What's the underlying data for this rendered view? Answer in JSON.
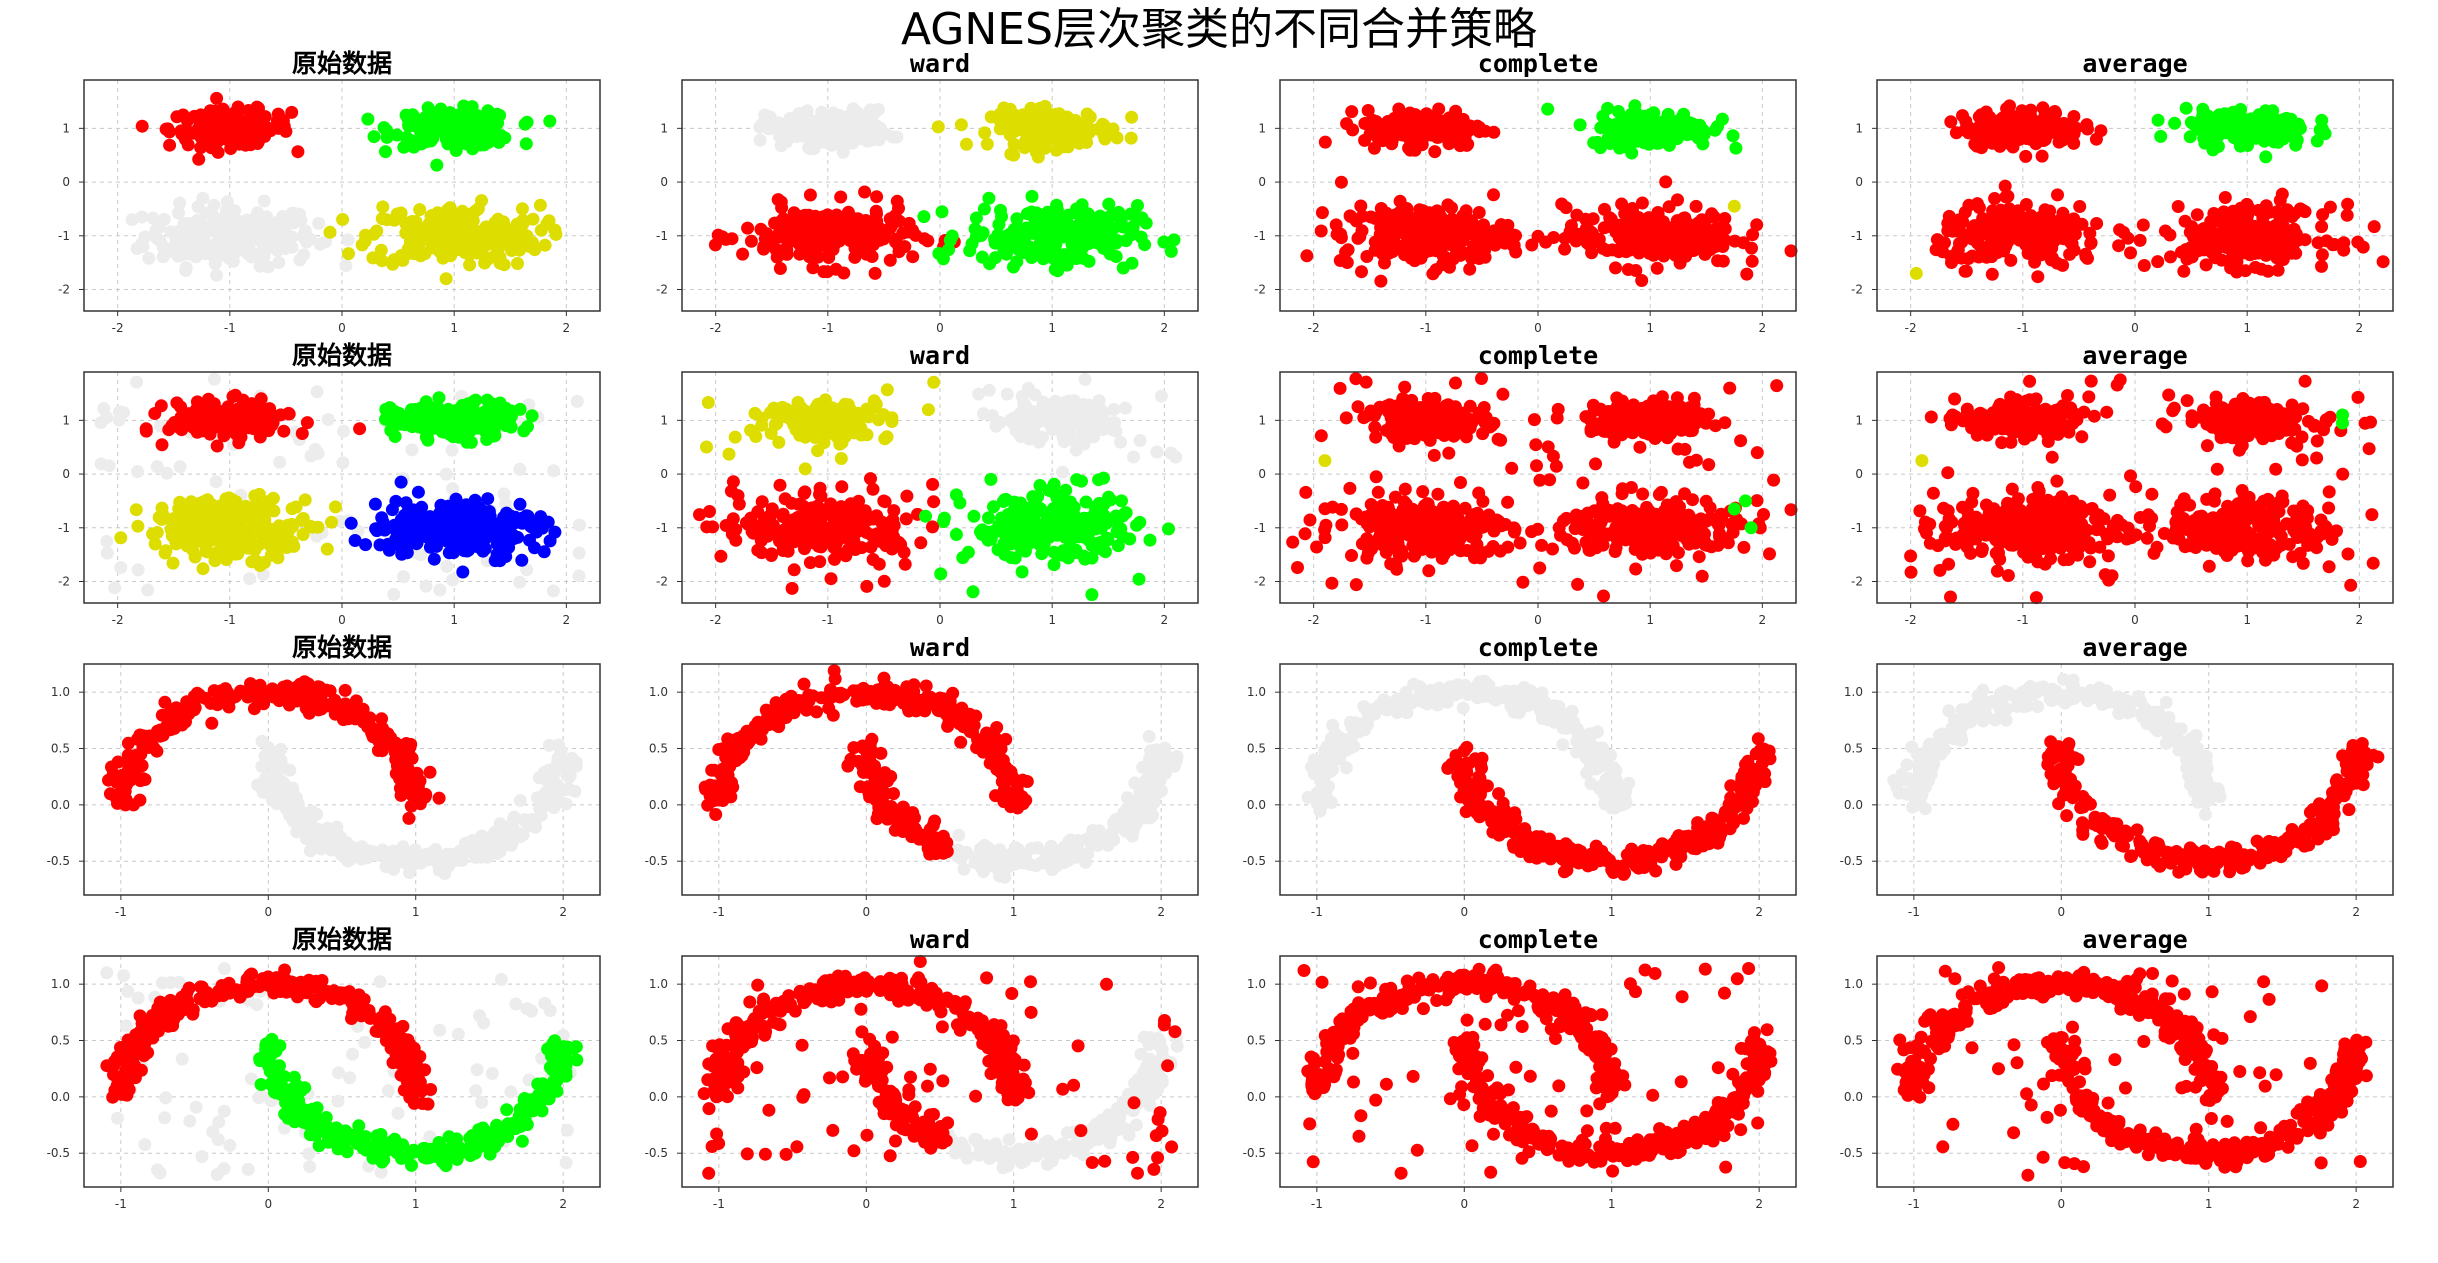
{
  "suptitle": "AGNES层次聚类的不同合并策略",
  "colors": {
    "unassigned": "#ececec",
    "cluster_red": "#ff0000",
    "cluster_green": "#00ff00",
    "cluster_yellow": "#dddd00",
    "cluster_blue": "#0000ff"
  },
  "chart_data": [
    {
      "type": "scatter",
      "title": "原始数据",
      "row": 0,
      "col": 0,
      "dataset": "blobs",
      "xlim": [
        -2.3,
        2.3
      ],
      "ylim": [
        -2.4,
        1.9
      ],
      "xticks": [
        "-2",
        "-1",
        "0",
        "1",
        "2"
      ],
      "yticks": [
        "-2",
        "-1",
        "0",
        "1"
      ],
      "grid": true,
      "noise": false,
      "groups": [
        {
          "region": "tl",
          "color": "cluster_red"
        },
        {
          "region": "tr",
          "color": "cluster_green"
        },
        {
          "region": "bl",
          "color": "unassigned"
        },
        {
          "region": "br",
          "color": "cluster_yellow"
        }
      ]
    },
    {
      "type": "scatter",
      "title": "ward",
      "row": 0,
      "col": 1,
      "dataset": "blobs",
      "xlim": [
        -2.3,
        2.3
      ],
      "ylim": [
        -2.4,
        1.9
      ],
      "xticks": [
        "-2",
        "-1",
        "0",
        "1",
        "2"
      ],
      "yticks": [
        "-2",
        "-1",
        "0",
        "1"
      ],
      "grid": true,
      "noise": false,
      "groups": [
        {
          "region": "tl",
          "color": "unassigned"
        },
        {
          "region": "tr",
          "color": "cluster_yellow"
        },
        {
          "region": "bl",
          "color": "cluster_red"
        },
        {
          "region": "br",
          "color": "cluster_green"
        }
      ]
    },
    {
      "type": "scatter",
      "title": "complete",
      "row": 0,
      "col": 2,
      "dataset": "blobs",
      "xlim": [
        -2.3,
        2.3
      ],
      "ylim": [
        -2.4,
        1.9
      ],
      "xticks": [
        "-2",
        "-1",
        "0",
        "1",
        "2"
      ],
      "yticks": [
        "-2",
        "-1",
        "0",
        "1"
      ],
      "grid": true,
      "noise": false,
      "groups": [
        {
          "region": "tl",
          "color": "cluster_red"
        },
        {
          "region": "tr",
          "color": "cluster_green"
        },
        {
          "region": "bl",
          "color": "cluster_red"
        },
        {
          "region": "br",
          "color": "cluster_red"
        }
      ],
      "extra_points": [
        {
          "x": 1.75,
          "y": -0.45,
          "color": "cluster_yellow"
        }
      ]
    },
    {
      "type": "scatter",
      "title": "average",
      "row": 0,
      "col": 3,
      "dataset": "blobs",
      "xlim": [
        -2.3,
        2.3
      ],
      "ylim": [
        -2.4,
        1.9
      ],
      "xticks": [
        "-2",
        "-1",
        "0",
        "1",
        "2"
      ],
      "yticks": [
        "-2",
        "-1",
        "0",
        "1"
      ],
      "grid": true,
      "noise": false,
      "groups": [
        {
          "region": "tl",
          "color": "cluster_red"
        },
        {
          "region": "tr",
          "color": "cluster_green"
        },
        {
          "region": "bl",
          "color": "cluster_red"
        },
        {
          "region": "br",
          "color": "cluster_red"
        }
      ],
      "extra_points": [
        {
          "x": -1.95,
          "y": -1.7,
          "color": "cluster_yellow"
        }
      ]
    },
    {
      "type": "scatter",
      "title": "原始数据",
      "row": 1,
      "col": 0,
      "dataset": "blobs",
      "xlim": [
        -2.3,
        2.3
      ],
      "ylim": [
        -2.4,
        1.9
      ],
      "xticks": [
        "-2",
        "-1",
        "0",
        "1",
        "2"
      ],
      "yticks": [
        "-2",
        "-1",
        "0",
        "1"
      ],
      "grid": true,
      "noise": true,
      "noise_color": "unassigned",
      "groups": [
        {
          "region": "tl",
          "color": "cluster_red"
        },
        {
          "region": "tr",
          "color": "cluster_green"
        },
        {
          "region": "bl",
          "color": "cluster_yellow"
        },
        {
          "region": "br",
          "color": "cluster_blue"
        }
      ]
    },
    {
      "type": "scatter",
      "title": "ward",
      "row": 1,
      "col": 1,
      "dataset": "blobs",
      "xlim": [
        -2.3,
        2.3
      ],
      "ylim": [
        -2.4,
        1.9
      ],
      "xticks": [
        "-2",
        "-1",
        "0",
        "1",
        "2"
      ],
      "yticks": [
        "-2",
        "-1",
        "0",
        "1"
      ],
      "grid": true,
      "noise": true,
      "noise_color": "mixed",
      "groups": [
        {
          "region": "tl",
          "color": "cluster_yellow"
        },
        {
          "region": "tr",
          "color": "unassigned"
        },
        {
          "region": "bl",
          "color": "cluster_red"
        },
        {
          "region": "br",
          "color": "cluster_green"
        }
      ]
    },
    {
      "type": "scatter",
      "title": "complete",
      "row": 1,
      "col": 2,
      "dataset": "blobs",
      "xlim": [
        -2.3,
        2.3
      ],
      "ylim": [
        -2.4,
        1.9
      ],
      "xticks": [
        "-2",
        "-1",
        "0",
        "1",
        "2"
      ],
      "yticks": [
        "-2",
        "-1",
        "0",
        "1"
      ],
      "grid": true,
      "noise": true,
      "noise_color": "cluster_red",
      "groups": [
        {
          "region": "tl",
          "color": "cluster_red"
        },
        {
          "region": "tr",
          "color": "cluster_red"
        },
        {
          "region": "bl",
          "color": "cluster_red"
        },
        {
          "region": "br",
          "color": "cluster_red"
        }
      ],
      "extra_points": [
        {
          "x": -1.9,
          "y": 0.25,
          "color": "cluster_yellow"
        },
        {
          "x": 1.85,
          "y": -0.5,
          "color": "cluster_green"
        },
        {
          "x": 1.75,
          "y": -0.65,
          "color": "cluster_green"
        },
        {
          "x": 1.9,
          "y": -1.0,
          "color": "cluster_green"
        }
      ]
    },
    {
      "type": "scatter",
      "title": "average",
      "row": 1,
      "col": 3,
      "dataset": "blobs",
      "xlim": [
        -2.3,
        2.3
      ],
      "ylim": [
        -2.4,
        1.9
      ],
      "xticks": [
        "-2",
        "-1",
        "0",
        "1",
        "2"
      ],
      "yticks": [
        "-2",
        "-1",
        "0",
        "1"
      ],
      "grid": true,
      "noise": true,
      "noise_color": "cluster_red",
      "groups": [
        {
          "region": "tl",
          "color": "cluster_red"
        },
        {
          "region": "tr",
          "color": "cluster_red"
        },
        {
          "region": "bl",
          "color": "cluster_red"
        },
        {
          "region": "br",
          "color": "cluster_red"
        }
      ],
      "extra_points": [
        {
          "x": -1.9,
          "y": 0.25,
          "color": "cluster_yellow"
        },
        {
          "x": 1.85,
          "y": 1.1,
          "color": "cluster_green"
        },
        {
          "x": 1.85,
          "y": 0.95,
          "color": "cluster_green"
        }
      ]
    },
    {
      "type": "scatter",
      "title": "原始数据",
      "row": 2,
      "col": 0,
      "dataset": "moons",
      "xlim": [
        -1.25,
        2.25
      ],
      "ylim": [
        -0.8,
        1.25
      ],
      "xticks": [
        "-1",
        "0",
        "1",
        "2"
      ],
      "yticks": [
        "-0.5",
        "0.0",
        "0.5",
        "1.0"
      ],
      "grid": true,
      "noise": false,
      "groups": [
        {
          "region": "upper",
          "color": "cluster_red"
        },
        {
          "region": "lower",
          "color": "unassigned"
        }
      ]
    },
    {
      "type": "scatter",
      "title": "ward",
      "row": 2,
      "col": 1,
      "dataset": "moons",
      "xlim": [
        -1.25,
        2.25
      ],
      "ylim": [
        -0.8,
        1.25
      ],
      "xticks": [
        "-1",
        "0",
        "1",
        "2"
      ],
      "yticks": [
        "-0.5",
        "0.0",
        "0.5",
        "1.0"
      ],
      "grid": true,
      "noise": false,
      "groups": [
        {
          "region": "upper",
          "color": "cluster_red"
        },
        {
          "region": "lower_left",
          "color": "cluster_red"
        },
        {
          "region": "lower_right",
          "color": "unassigned"
        }
      ]
    },
    {
      "type": "scatter",
      "title": "complete",
      "row": 2,
      "col": 2,
      "dataset": "moons",
      "xlim": [
        -1.25,
        2.25
      ],
      "ylim": [
        -0.8,
        1.25
      ],
      "xticks": [
        "-1",
        "0",
        "1",
        "2"
      ],
      "yticks": [
        "-0.5",
        "0.0",
        "0.5",
        "1.0"
      ],
      "grid": true,
      "noise": false,
      "groups": [
        {
          "region": "upper",
          "color": "unassigned"
        },
        {
          "region": "lower",
          "color": "cluster_red"
        }
      ]
    },
    {
      "type": "scatter",
      "title": "average",
      "row": 2,
      "col": 3,
      "dataset": "moons",
      "xlim": [
        -1.25,
        2.25
      ],
      "ylim": [
        -0.8,
        1.25
      ],
      "xticks": [
        "-1",
        "0",
        "1",
        "2"
      ],
      "yticks": [
        "-0.5",
        "0.0",
        "0.5",
        "1.0"
      ],
      "grid": true,
      "noise": false,
      "groups": [
        {
          "region": "upper",
          "color": "unassigned"
        },
        {
          "region": "lower",
          "color": "cluster_red"
        }
      ]
    },
    {
      "type": "scatter",
      "title": "原始数据",
      "row": 3,
      "col": 0,
      "dataset": "moons",
      "xlim": [
        -1.25,
        2.25
      ],
      "ylim": [
        -0.8,
        1.25
      ],
      "xticks": [
        "-1",
        "0",
        "1",
        "2"
      ],
      "yticks": [
        "-0.5",
        "0.0",
        "0.5",
        "1.0"
      ],
      "grid": true,
      "noise": true,
      "noise_color": "unassigned",
      "groups": [
        {
          "region": "upper",
          "color": "cluster_red"
        },
        {
          "region": "lower",
          "color": "cluster_green"
        }
      ]
    },
    {
      "type": "scatter",
      "title": "ward",
      "row": 3,
      "col": 1,
      "dataset": "moons",
      "xlim": [
        -1.25,
        2.25
      ],
      "ylim": [
        -0.8,
        1.25
      ],
      "xticks": [
        "-1",
        "0",
        "1",
        "2"
      ],
      "yticks": [
        "-0.5",
        "0.0",
        "0.5",
        "1.0"
      ],
      "grid": true,
      "noise": true,
      "noise_color": "cluster_red",
      "groups": [
        {
          "region": "upper",
          "color": "cluster_red"
        },
        {
          "region": "lower_left",
          "color": "cluster_red"
        },
        {
          "region": "lower_right",
          "color": "unassigned"
        }
      ]
    },
    {
      "type": "scatter",
      "title": "complete",
      "row": 3,
      "col": 2,
      "dataset": "moons",
      "xlim": [
        -1.25,
        2.25
      ],
      "ylim": [
        -0.8,
        1.25
      ],
      "xticks": [
        "-1",
        "0",
        "1",
        "2"
      ],
      "yticks": [
        "-0.5",
        "0.0",
        "0.5",
        "1.0"
      ],
      "grid": true,
      "noise": true,
      "noise_color": "cluster_red",
      "groups": [
        {
          "region": "upper",
          "color": "cluster_red"
        },
        {
          "region": "lower",
          "color": "cluster_red"
        }
      ]
    },
    {
      "type": "scatter",
      "title": "average",
      "row": 3,
      "col": 3,
      "dataset": "moons",
      "xlim": [
        -1.25,
        2.25
      ],
      "ylim": [
        -0.8,
        1.25
      ],
      "xticks": [
        "-1",
        "0",
        "1",
        "2"
      ],
      "yticks": [
        "-0.5",
        "0.0",
        "0.5",
        "1.0"
      ],
      "grid": true,
      "noise": true,
      "noise_color": "cluster_red",
      "groups": [
        {
          "region": "upper",
          "color": "cluster_red"
        },
        {
          "region": "lower",
          "color": "cluster_red"
        }
      ]
    }
  ]
}
